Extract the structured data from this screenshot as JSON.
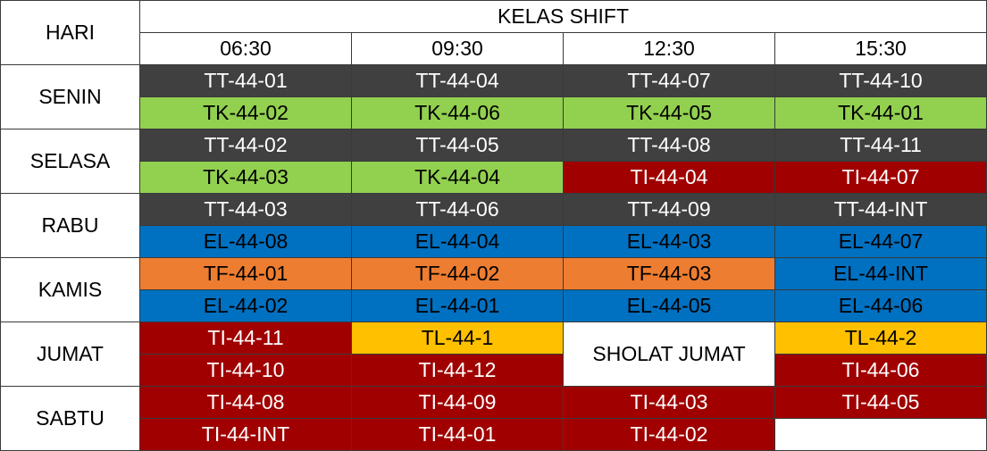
{
  "header": {
    "day_label": "HARI",
    "title": "KELAS SHIFT",
    "times": [
      "06:30",
      "09:30",
      "12:30",
      "15:30"
    ]
  },
  "colors": {
    "dark": "#404040",
    "green": "#92d050",
    "red": "#a00000",
    "blue": "#0070c0",
    "orange": "#ed7d31",
    "yellow": "#ffc000",
    "white": "#ffffff"
  },
  "days": [
    {
      "name": "SENIN",
      "rows": [
        [
          "TT-44-01",
          "TT-44-04",
          "TT-44-07",
          "TT-44-10"
        ],
        [
          "TK-44-02",
          "TK-44-06",
          "TK-44-05",
          "TK-44-01"
        ]
      ]
    },
    {
      "name": "SELASA",
      "rows": [
        [
          "TT-44-02",
          "TT-44-05",
          "TT-44-08",
          "TT-44-11"
        ],
        [
          "TK-44-03",
          "TK-44-04",
          "TI-44-04",
          "TI-44-07"
        ]
      ]
    },
    {
      "name": "RABU",
      "rows": [
        [
          "TT-44-03",
          "TT-44-06",
          "TT-44-09",
          "TT-44-INT"
        ],
        [
          "EL-44-08",
          "EL-44-04",
          "EL-44-03",
          "EL-44-07"
        ]
      ]
    },
    {
      "name": "KAMIS",
      "rows": [
        [
          "TF-44-01",
          "TF-44-02",
          "TF-44-03",
          "EL-44-INT"
        ],
        [
          "EL-44-02",
          "EL-44-01",
          "EL-44-05",
          "EL-44-06"
        ]
      ]
    },
    {
      "name": "JUMAT",
      "rows": [
        [
          "TI-44-11",
          "TL-44-1",
          "SHOLAT JUMAT",
          "TL-44-2"
        ],
        [
          "TI-44-10",
          "TI-44-12",
          "",
          "TI-44-06"
        ]
      ]
    },
    {
      "name": "SABTU",
      "rows": [
        [
          "TI-44-08",
          "TI-44-09",
          "TI-44-03",
          "TI-44-05"
        ],
        [
          "TI-44-INT",
          "TI-44-01",
          "TI-44-02",
          ""
        ]
      ]
    }
  ]
}
